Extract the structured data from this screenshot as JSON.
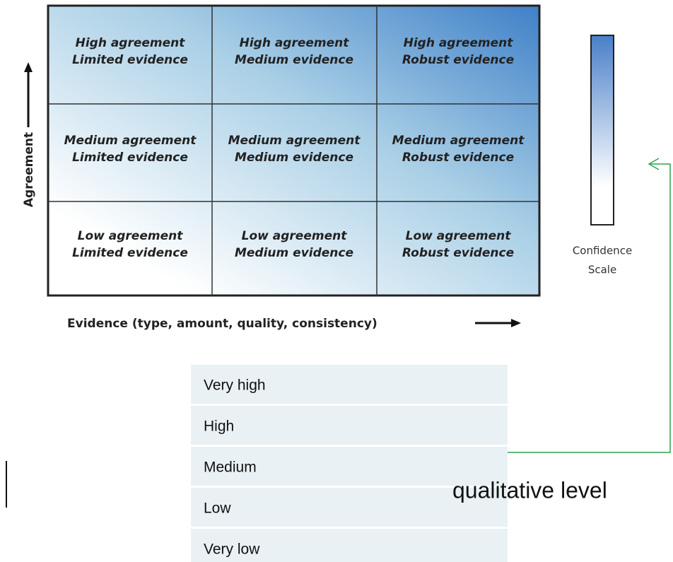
{
  "matrix": {
    "rows": [
      [
        "High agreement\nLimited evidence",
        "High agreement\nMedium evidence",
        "High agreement\nRobust evidence"
      ],
      [
        "Medium agreement\nLimited evidence",
        "Medium agreement\nMedium evidence",
        "Medium agreement\nRobust evidence"
      ],
      [
        "Low agreement\nLimited evidence",
        "Low agreement\nMedium evidence",
        "Low agreement\nRobust evidence"
      ]
    ],
    "y_label": "Agreement",
    "x_label": "Evidence (type, amount, quality, consistency)"
  },
  "scale": {
    "label": [
      "Confidence",
      "Scale"
    ]
  },
  "levels": {
    "rows": [
      "Very high",
      "High",
      "Medium",
      "Low",
      "Very low"
    ],
    "caption": "qualitative level"
  }
}
